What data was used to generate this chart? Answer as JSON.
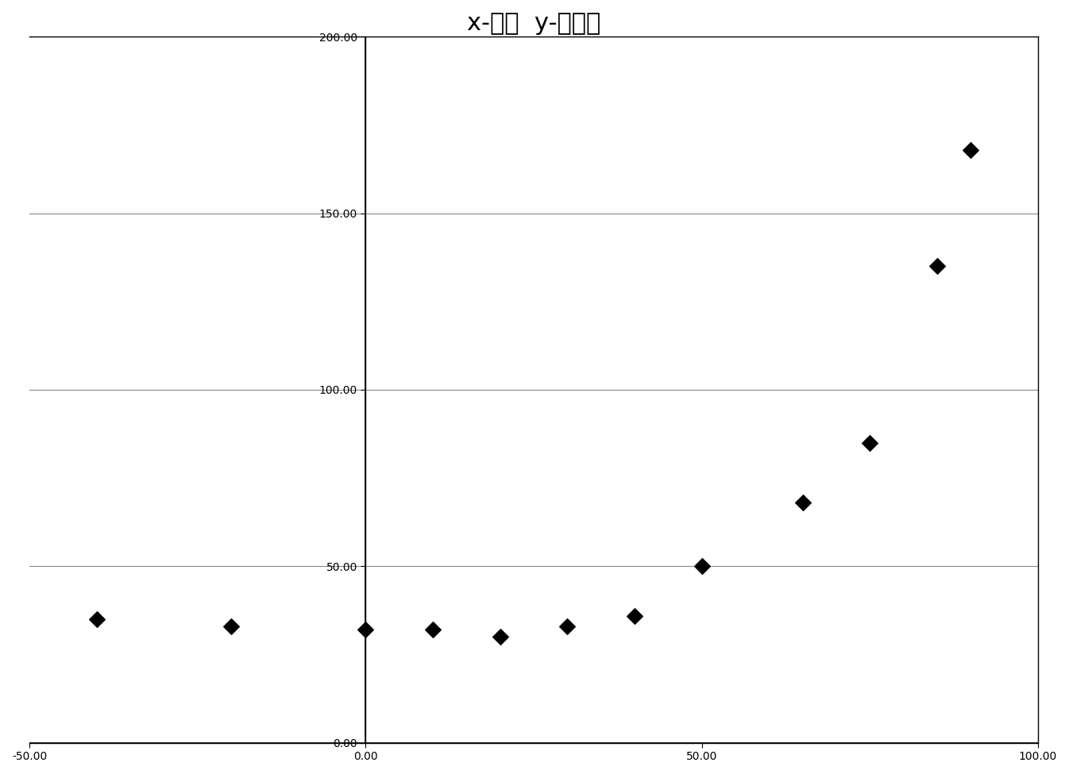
{
  "title": "x-温度  y-暗电流",
  "x_data": [
    -40,
    -20,
    0,
    10,
    20,
    30,
    40,
    50,
    65,
    75,
    85,
    90
  ],
  "y_data": [
    35,
    33,
    32,
    32,
    30,
    33,
    36,
    50,
    68,
    85,
    135,
    168
  ],
  "xlim": [
    -50,
    100
  ],
  "ylim": [
    0,
    200
  ],
  "xticks": [
    -50,
    0,
    50,
    100
  ],
  "yticks": [
    0,
    50,
    100,
    150,
    200
  ],
  "xtick_labels": [
    "-50.00",
    "0.00",
    "50.00",
    "100.00"
  ],
  "ytick_labels": [
    "0.00",
    "50.00",
    "100.00",
    "150.00",
    "200.00"
  ],
  "marker": "D",
  "marker_color": "#000000",
  "marker_size": 10,
  "grid_color": "#888888",
  "bg_color": "#ffffff",
  "title_fontsize": 22,
  "tick_fontsize": 16,
  "spine_color": "#000000",
  "axline_color": "#000000"
}
